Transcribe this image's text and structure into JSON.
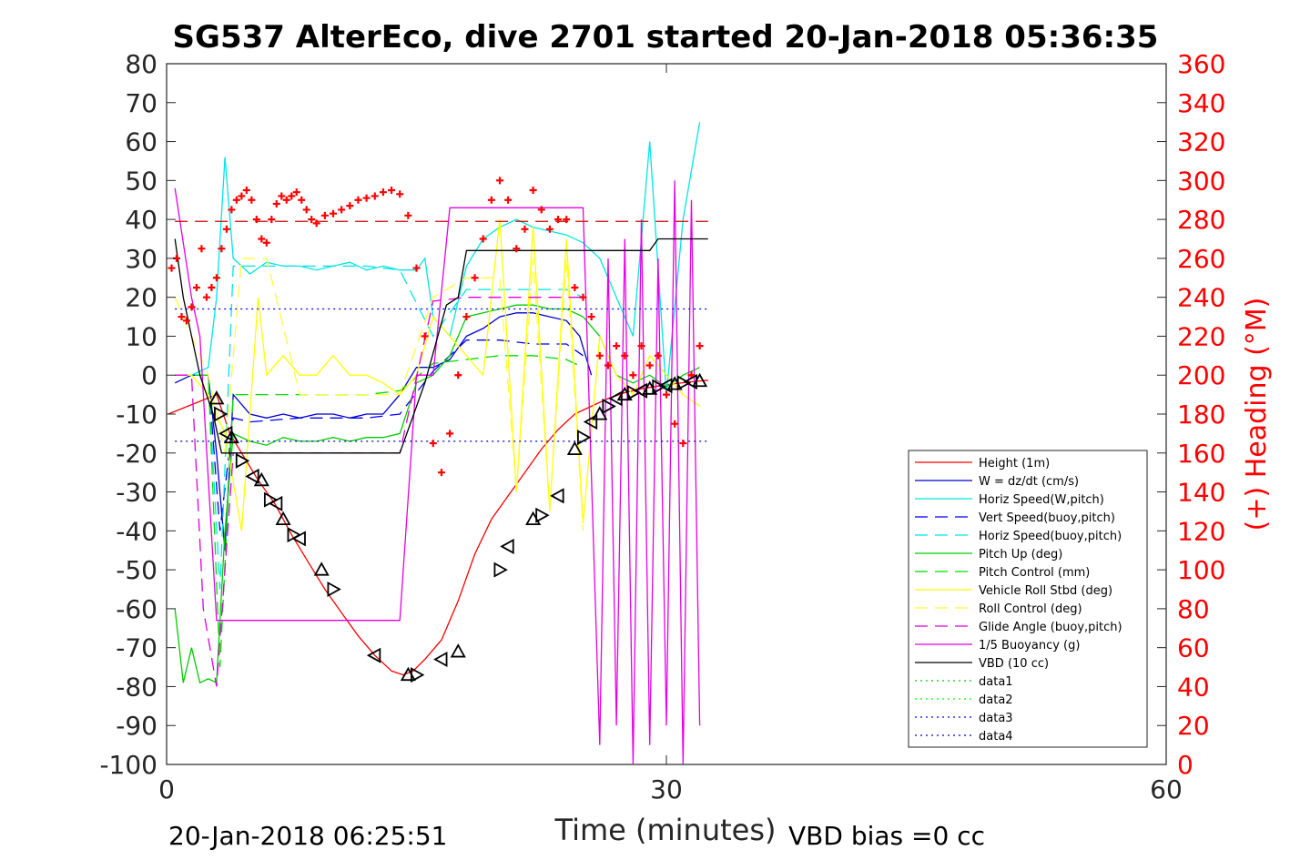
{
  "chart_data": {
    "type": "line",
    "title": "SG537 AlterEco, dive 2701 started 20-Jan-2018 05:36:35",
    "xlabel": "Time (minutes)",
    "ylabel_right": "(+) Heading (°M)",
    "xlim": [
      0,
      60
    ],
    "ylim": [
      -100,
      80
    ],
    "ylim_right": [
      0,
      360
    ],
    "x_ticks": [
      "0",
      "30",
      "60"
    ],
    "y_ticks": [
      "80",
      "70",
      "60",
      "50",
      "40",
      "30",
      "20",
      "10",
      "0",
      "-10",
      "-20",
      "-30",
      "-40",
      "-50",
      "-60",
      "-70",
      "-80",
      "-90",
      "-100"
    ],
    "y_right_ticks": [
      "360",
      "340",
      "320",
      "300",
      "280",
      "260",
      "240",
      "220",
      "200",
      "180",
      "160",
      "140",
      "120",
      "100",
      "80",
      "60",
      "40",
      "20",
      "0"
    ],
    "legend_position": "bottom-right",
    "grid": false,
    "footer_left": "20-Jan-2018 06:25:51",
    "footer_right": "VBD bias =0 cc",
    "series": [
      {
        "name": "Height (1m)",
        "color": "#ff0000",
        "style": "solid",
        "x": [
          0.1,
          3,
          3.8,
          4.5,
          5.5,
          6.5,
          7.5,
          8.5,
          9.5,
          10.5,
          11.5,
          12.5,
          13.5,
          14.2,
          14.8,
          15.5,
          16.5,
          17.5,
          18.5,
          19.5,
          20.5,
          21.5,
          22.5,
          23.5,
          24.5,
          25.5,
          26.5,
          27.5,
          28.5,
          29.5,
          30.5,
          31.5,
          32.5
        ],
        "y": [
          -10,
          -5,
          -15,
          -20,
          -27,
          -33,
          -41,
          -48,
          -55,
          -61,
          -67,
          -72,
          -76,
          -77,
          -76,
          -73,
          -68,
          -58,
          -46,
          -37,
          -31,
          -25,
          -19,
          -14,
          -10,
          -8,
          -6,
          -4.5,
          -3.5,
          -2.8,
          -2.2,
          -1.7,
          -1.3
        ]
      },
      {
        "name": "W = dz/dt (cm/s)",
        "color": "#0000cc",
        "style": "solid",
        "x": [
          0.5,
          1.5,
          2.5,
          3,
          3.5,
          4,
          5,
          6,
          7,
          8,
          9,
          10,
          11,
          12,
          13,
          14,
          15,
          16,
          17,
          18,
          19,
          20,
          21,
          22,
          23,
          24,
          24.8,
          25.5
        ],
        "y": [
          -2,
          0,
          0,
          -20,
          -45,
          -5,
          -10,
          -11,
          -10,
          -11,
          -10,
          -10,
          -11,
          -10,
          -10,
          -5,
          2,
          2,
          4,
          10,
          12,
          15,
          16,
          16,
          15,
          14,
          10,
          0
        ]
      },
      {
        "name": "Horiz Speed(W,pitch)",
        "color": "#00e5e5",
        "style": "solid",
        "x": [
          0.5,
          1.5,
          2.5,
          3,
          3.5,
          4,
          4.5,
          5,
          6,
          7,
          8,
          9,
          10,
          11,
          12,
          13,
          14,
          15,
          15.5,
          16,
          17,
          18,
          19,
          20,
          21,
          22,
          23,
          24,
          25,
          26,
          27,
          28,
          29,
          30,
          31,
          32
        ],
        "y": [
          0,
          0,
          2,
          20,
          56,
          30,
          28,
          26,
          29,
          28,
          28,
          27,
          28,
          29,
          27,
          28,
          27,
          27,
          30,
          15,
          10,
          28,
          35,
          38,
          40,
          38,
          37,
          36,
          34,
          30,
          20,
          10,
          60,
          -5,
          40,
          65
        ]
      },
      {
        "name": "Vert Speed(buoy,pitch)",
        "color": "#0000ff",
        "style": "dashed",
        "x": [
          0.5,
          2.5,
          3.2,
          4,
          5,
          8,
          12,
          14,
          16,
          18,
          20,
          22,
          24,
          25
        ],
        "y": [
          0,
          0,
          -40,
          -11,
          -12,
          -11,
          -11,
          -10,
          1,
          9,
          9,
          8,
          8,
          5
        ]
      },
      {
        "name": "Horiz Speed(buoy,pitch)",
        "color": "#00e5e5",
        "style": "dashed",
        "x": [
          0.5,
          2.5,
          3.2,
          4,
          5,
          8,
          12,
          14,
          16,
          18,
          20,
          22,
          24,
          25
        ],
        "y": [
          0,
          0,
          -55,
          28,
          28,
          28,
          28,
          27,
          10,
          22,
          22,
          22,
          22,
          20
        ]
      },
      {
        "name": "Pitch Up (deg)",
        "color": "#00cc00",
        "style": "solid",
        "x": [
          0.5,
          1,
          1.5,
          2,
          2.5,
          3,
          3.5,
          4,
          5,
          6,
          7,
          8,
          9,
          10,
          11,
          12,
          13,
          14,
          15,
          16,
          17,
          18,
          19,
          20,
          21,
          22,
          23,
          24,
          25,
          26,
          27,
          28,
          29,
          30,
          31,
          32
        ],
        "y": [
          -60,
          -79,
          -70,
          -79,
          -78,
          -79,
          -40,
          -15,
          -17,
          -18,
          -16,
          -17,
          -17,
          -16,
          -17,
          -16,
          -16,
          -15,
          -2,
          0,
          5,
          15,
          16,
          17,
          18,
          18,
          17,
          17,
          15,
          10,
          0,
          -2,
          0,
          -3,
          0,
          2
        ]
      },
      {
        "name": "Pitch Control (mm)",
        "color": "#00dd00",
        "style": "dashed",
        "x": [
          0.5,
          2.5,
          3.2,
          4,
          6,
          8,
          10,
          12,
          14,
          16,
          18,
          20,
          22,
          24,
          25
        ],
        "y": [
          0,
          0,
          -75,
          -5,
          -5,
          -5,
          -5,
          -5,
          -4,
          3,
          4,
          5,
          5,
          4,
          2
        ]
      },
      {
        "name": "Vehicle Roll Stbd (deg)",
        "color": "#ffff00",
        "style": "solid",
        "x": [
          0.5,
          1.5,
          2.5,
          3.5,
          4.5,
          5.5,
          6,
          7,
          8,
          9,
          10,
          11,
          12,
          13,
          14,
          15,
          16,
          17,
          18,
          19,
          20,
          21,
          22,
          23,
          24,
          25,
          26,
          27,
          28,
          29,
          30,
          31,
          32
        ],
        "y": [
          0,
          0,
          -5,
          -15,
          -40,
          20,
          0,
          5,
          0,
          0,
          5,
          0,
          0,
          -2,
          -5,
          0,
          15,
          10,
          5,
          0,
          40,
          -30,
          38,
          -35,
          35,
          -38,
          10,
          0,
          -5,
          5,
          0,
          -5,
          -8
        ]
      },
      {
        "name": "Roll Control (deg)",
        "color": "#ffff33",
        "style": "dashed",
        "x": [
          0.5,
          2.5,
          3.5,
          4.5,
          6,
          8,
          10,
          12,
          14,
          16,
          18,
          20,
          21,
          22,
          23,
          24,
          25
        ],
        "y": [
          20,
          0,
          -20,
          30,
          30,
          -5,
          -5,
          -5,
          -5,
          20,
          25,
          25,
          -30,
          30,
          -35,
          30,
          -40
        ]
      },
      {
        "name": "Glide Angle (buoy,pitch)",
        "color": "#dd00dd",
        "style": "dashed",
        "x": [
          0.5,
          1.5,
          2.2,
          3,
          3.5,
          4,
          6,
          8,
          10,
          12,
          14,
          16,
          18,
          20,
          22,
          24,
          25
        ],
        "y": [
          0,
          0,
          -60,
          -80,
          -50,
          -20,
          -20,
          -20,
          -20,
          -20,
          -20,
          19,
          20,
          20,
          20,
          20,
          20
        ]
      },
      {
        "name": "1/5 Buoyancy (g)",
        "color": "#e600e6",
        "style": "solid",
        "x": [
          0.5,
          1.5,
          2,
          3,
          10,
          12,
          14,
          15,
          16,
          17,
          18,
          20,
          22,
          24,
          25,
          26,
          26.5,
          27,
          27.5,
          28,
          28.5,
          29,
          29.5,
          30,
          30.5,
          31,
          31.5,
          32
        ],
        "y": [
          48,
          20,
          10,
          -63,
          -63,
          -63,
          -63,
          0,
          0,
          43,
          43,
          43,
          43,
          43,
          43,
          -95,
          30,
          -90,
          35,
          -100,
          40,
          -95,
          30,
          -90,
          50,
          -100,
          45,
          -90
        ]
      },
      {
        "name": "VBD (10 cc)",
        "color": "#000000",
        "style": "solid",
        "x": [
          0.5,
          1,
          2,
          2.8,
          3.3,
          14,
          15.5,
          16.8,
          17.5,
          18,
          29,
          29.5,
          32.5
        ],
        "y": [
          35,
          20,
          0,
          -10,
          -20,
          -20,
          -2,
          18,
          20,
          32,
          32,
          35,
          35
        ]
      },
      {
        "name": "data1",
        "color": "#00cc00",
        "style": "dotted",
        "x": [],
        "y": []
      },
      {
        "name": "data2",
        "color": "#00ff00",
        "style": "dotted",
        "x": [],
        "y": []
      },
      {
        "name": "data3",
        "color": "#0000ff",
        "style": "dotted",
        "x": [
          0.5,
          32.5
        ],
        "y": [
          17,
          17
        ]
      },
      {
        "name": "data4",
        "color": "#0000cc",
        "style": "dotted",
        "x": [
          0.5,
          32.5
        ],
        "y": [
          -17,
          -17
        ]
      }
    ],
    "heading_reference": {
      "color": "#cc0000",
      "style": "dashed",
      "heading": 279
    },
    "heading_points": {
      "color": "#ff0000",
      "x": [
        0.3,
        0.6,
        0.9,
        1.2,
        1.5,
        1.8,
        2.1,
        2.4,
        2.7,
        3.0,
        3.3,
        3.6,
        3.9,
        4.2,
        4.5,
        4.8,
        5.1,
        5.4,
        5.7,
        6.0,
        6.3,
        6.6,
        6.9,
        7.2,
        7.5,
        7.8,
        8.1,
        8.4,
        8.7,
        9.0,
        9.5,
        10,
        10.5,
        11,
        11.5,
        12,
        12.5,
        13,
        13.5,
        14,
        14.5,
        15,
        15.5,
        16,
        16.5,
        17,
        17.5,
        18,
        18.5,
        19,
        19.5,
        20,
        20.5,
        21,
        21.5,
        22,
        22.5,
        23,
        23.5,
        24,
        24.5,
        25,
        25.5,
        26,
        26.5,
        27,
        27.5,
        28,
        28.5,
        29,
        29.5,
        30,
        30.5,
        31,
        31.5,
        32
      ],
      "heading": [
        255,
        260,
        230,
        228,
        235,
        245,
        265,
        240,
        245,
        250,
        265,
        275,
        285,
        290,
        292,
        295,
        290,
        280,
        270,
        268,
        280,
        288,
        292,
        290,
        292,
        294,
        290,
        285,
        280,
        278,
        282,
        283,
        285,
        287,
        290,
        291,
        292,
        294,
        295,
        293,
        282,
        255,
        220,
        165,
        150,
        170,
        200,
        230,
        250,
        270,
        290,
        300,
        290,
        265,
        275,
        295,
        285,
        275,
        280,
        280,
        245,
        240,
        230,
        210,
        205,
        215,
        210,
        200,
        215,
        205,
        210,
        190,
        175,
        165,
        200,
        215
      ]
    },
    "markers": {
      "color": "#000000",
      "x": [
        3,
        3.2,
        3.6,
        3.9,
        4.5,
        5.2,
        5.7,
        6.2,
        6.6,
        7,
        7.6,
        8,
        9.3,
        10,
        12.5,
        14.5,
        15,
        16.5,
        17.5,
        20,
        20.5,
        22,
        22.5,
        23.5,
        24.5,
        25,
        25.5,
        26,
        26.5,
        27,
        27.5,
        28,
        28.5,
        29,
        29.5,
        30,
        30.5,
        31,
        31.5,
        32
      ],
      "y": [
        -6,
        -10,
        -15,
        -16,
        -22,
        -26,
        -27,
        -32,
        -33,
        -37,
        -41,
        -42,
        -50,
        -55,
        -72,
        -77,
        -77,
        -73,
        -71,
        -50,
        -44,
        -37,
        -36,
        -31,
        -19,
        -16,
        -12,
        -10,
        -8,
        -6,
        -5,
        -4.5,
        -4,
        -3.5,
        -3,
        -2.7,
        -2.3,
        -2,
        -1.7,
        -1.5
      ]
    }
  }
}
